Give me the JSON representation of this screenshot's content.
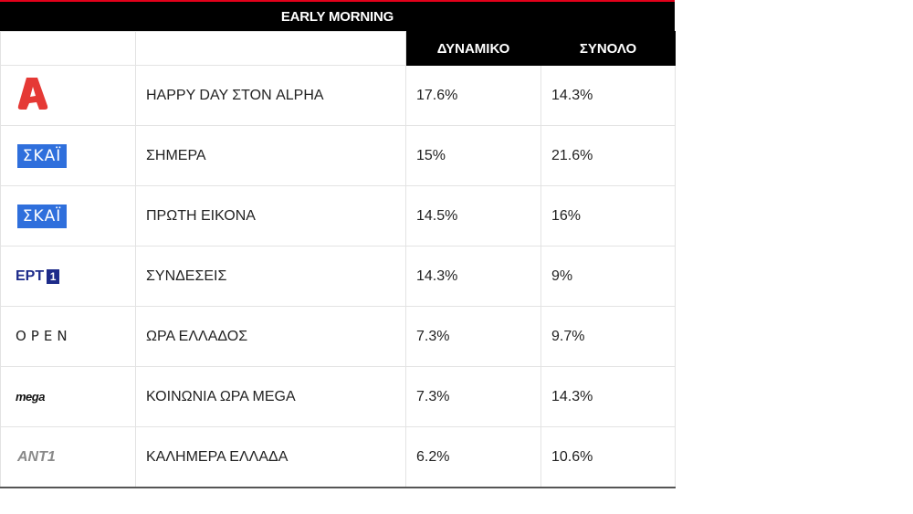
{
  "title": "EARLY MORNING",
  "columns": [
    "ΔΥΝΑΜΙΚΟ",
    "ΣΥΝΟΛΟ"
  ],
  "colors": {
    "header_bg": "#000000",
    "accent_red": "#e2001a",
    "alpha_red": "#e53935",
    "skai_blue": "#2f6fdc",
    "ert_blue": "#1d2b8a"
  },
  "rows": [
    {
      "logo": "alpha-logo",
      "logo_text": "",
      "show": "HAPPY DAY ΣΤΟΝ ALPHA",
      "dynamiko": "17.6%",
      "synolo": "14.3%"
    },
    {
      "logo": "skai-logo",
      "logo_text": "ΣΚΑΪ",
      "show": "ΣΗΜΕΡΑ",
      "dynamiko": "15%",
      "synolo": "21.6%"
    },
    {
      "logo": "skai-logo",
      "logo_text": "ΣΚΑΪ",
      "show": "ΠΡΩΤΗ ΕΙΚΟΝΑ",
      "dynamiko": "14.5%",
      "synolo": "16%"
    },
    {
      "logo": "ert1-logo",
      "logo_text": "ΕΡΤ",
      "logo_badge": "1",
      "show": "ΣΥΝΔΕΣΕΙΣ",
      "dynamiko": "14.3%",
      "synolo": "9%"
    },
    {
      "logo": "open-logo",
      "logo_text": "OPEN",
      "show": "ΩΡΑ ΕΛΛΑΔΟΣ",
      "dynamiko": "7.3%",
      "synolo": "9.7%"
    },
    {
      "logo": "mega-logo",
      "logo_text": "mega",
      "show": "ΚΟΙΝΩΝΙΑ ΩΡΑ MEGA",
      "dynamiko": "7.3%",
      "synolo": "14.3%"
    },
    {
      "logo": "ant1-logo",
      "logo_text": "ANT1",
      "show": "ΚΑΛΗΜΕΡΑ ΕΛΛΑΔΑ",
      "dynamiko": "6.2%",
      "synolo": "10.6%"
    }
  ]
}
